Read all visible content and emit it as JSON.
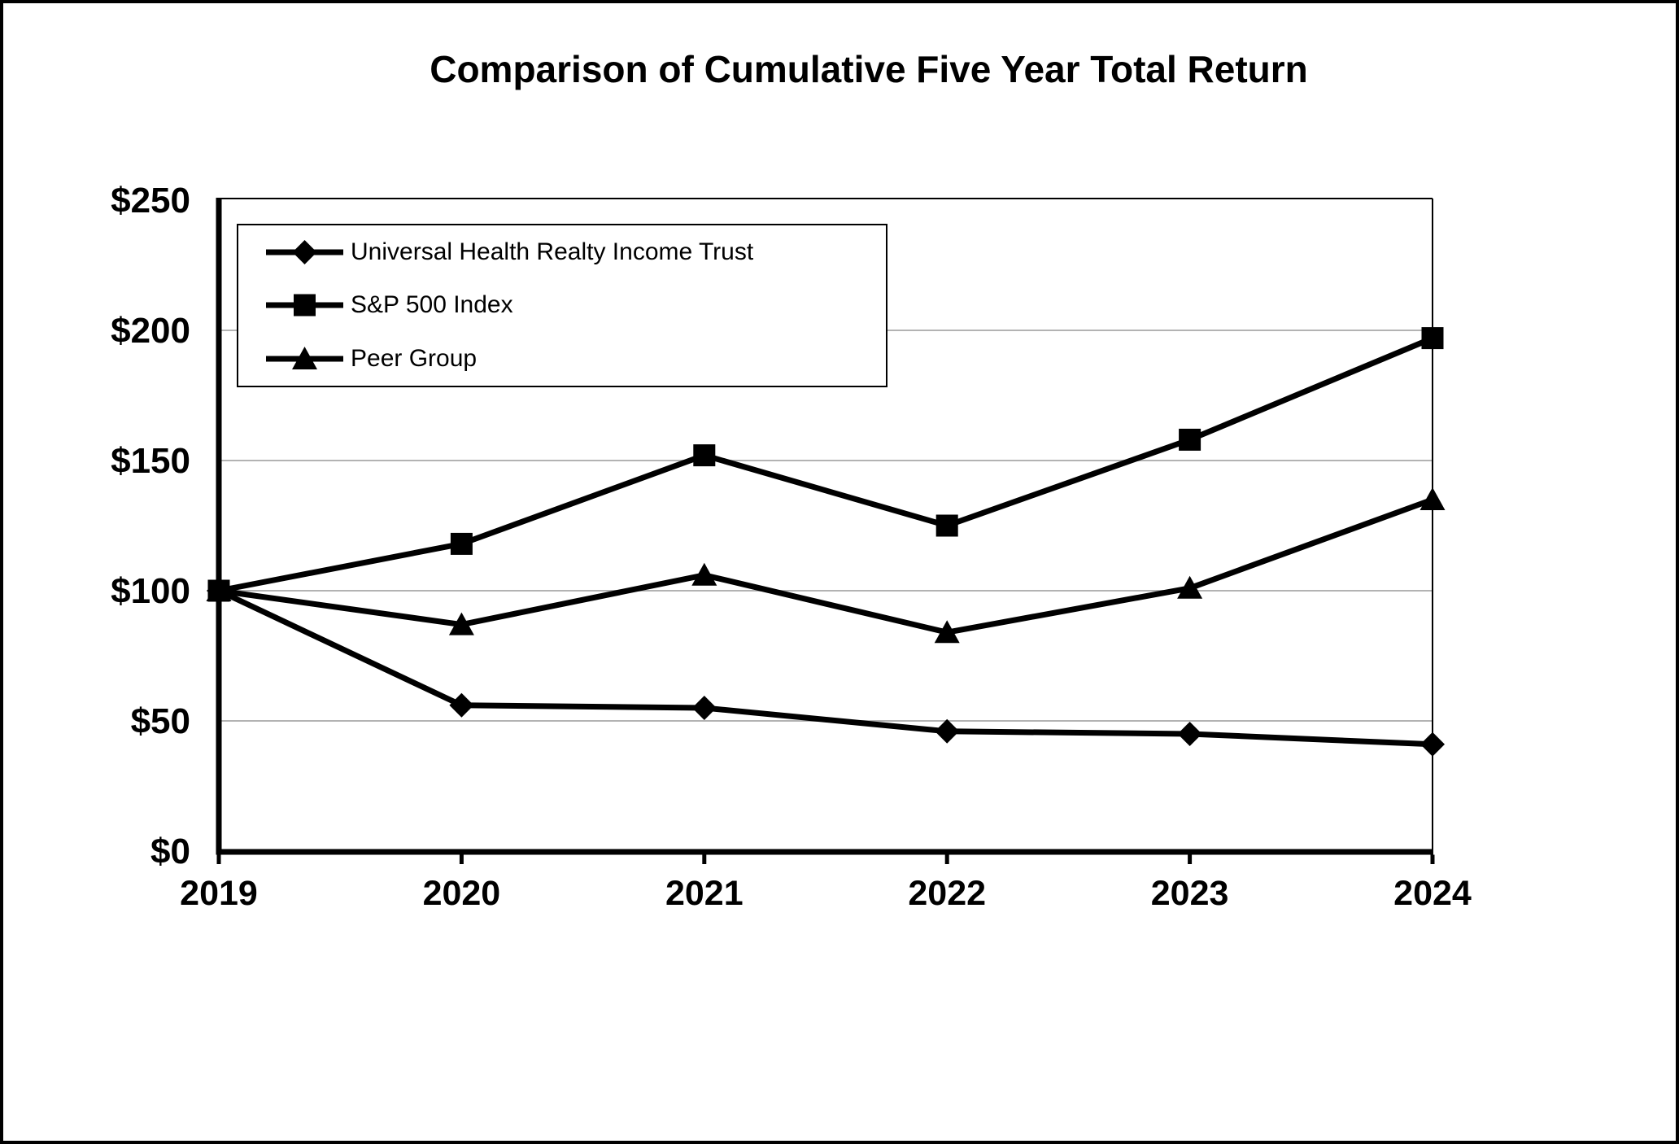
{
  "title": "Comparison of Cumulative Five Year Total Return",
  "chart_data": {
    "type": "line",
    "x_labels": [
      "2019",
      "2020",
      "2021",
      "2022",
      "2023",
      "2024"
    ],
    "y_ticks": [
      0,
      50,
      100,
      150,
      200,
      250
    ],
    "y_tick_labels": [
      "$0",
      "$50",
      "$100",
      "$150",
      "$200",
      "$250"
    ],
    "ylim": [
      0,
      250
    ],
    "grid": true,
    "legend_position": "top-left-inside",
    "line_color": "#000000",
    "grid_color": "#b3b3b3",
    "series": [
      {
        "name": "Universal Health Realty Income Trust",
        "marker": "diamond",
        "values": [
          100,
          56,
          55,
          46,
          45,
          41
        ]
      },
      {
        "name": "S&P 500 Index",
        "marker": "square",
        "values": [
          100,
          118,
          152,
          125,
          158,
          197
        ]
      },
      {
        "name": "Peer Group",
        "marker": "triangle",
        "values": [
          100,
          87,
          106,
          84,
          101,
          135
        ]
      }
    ]
  }
}
